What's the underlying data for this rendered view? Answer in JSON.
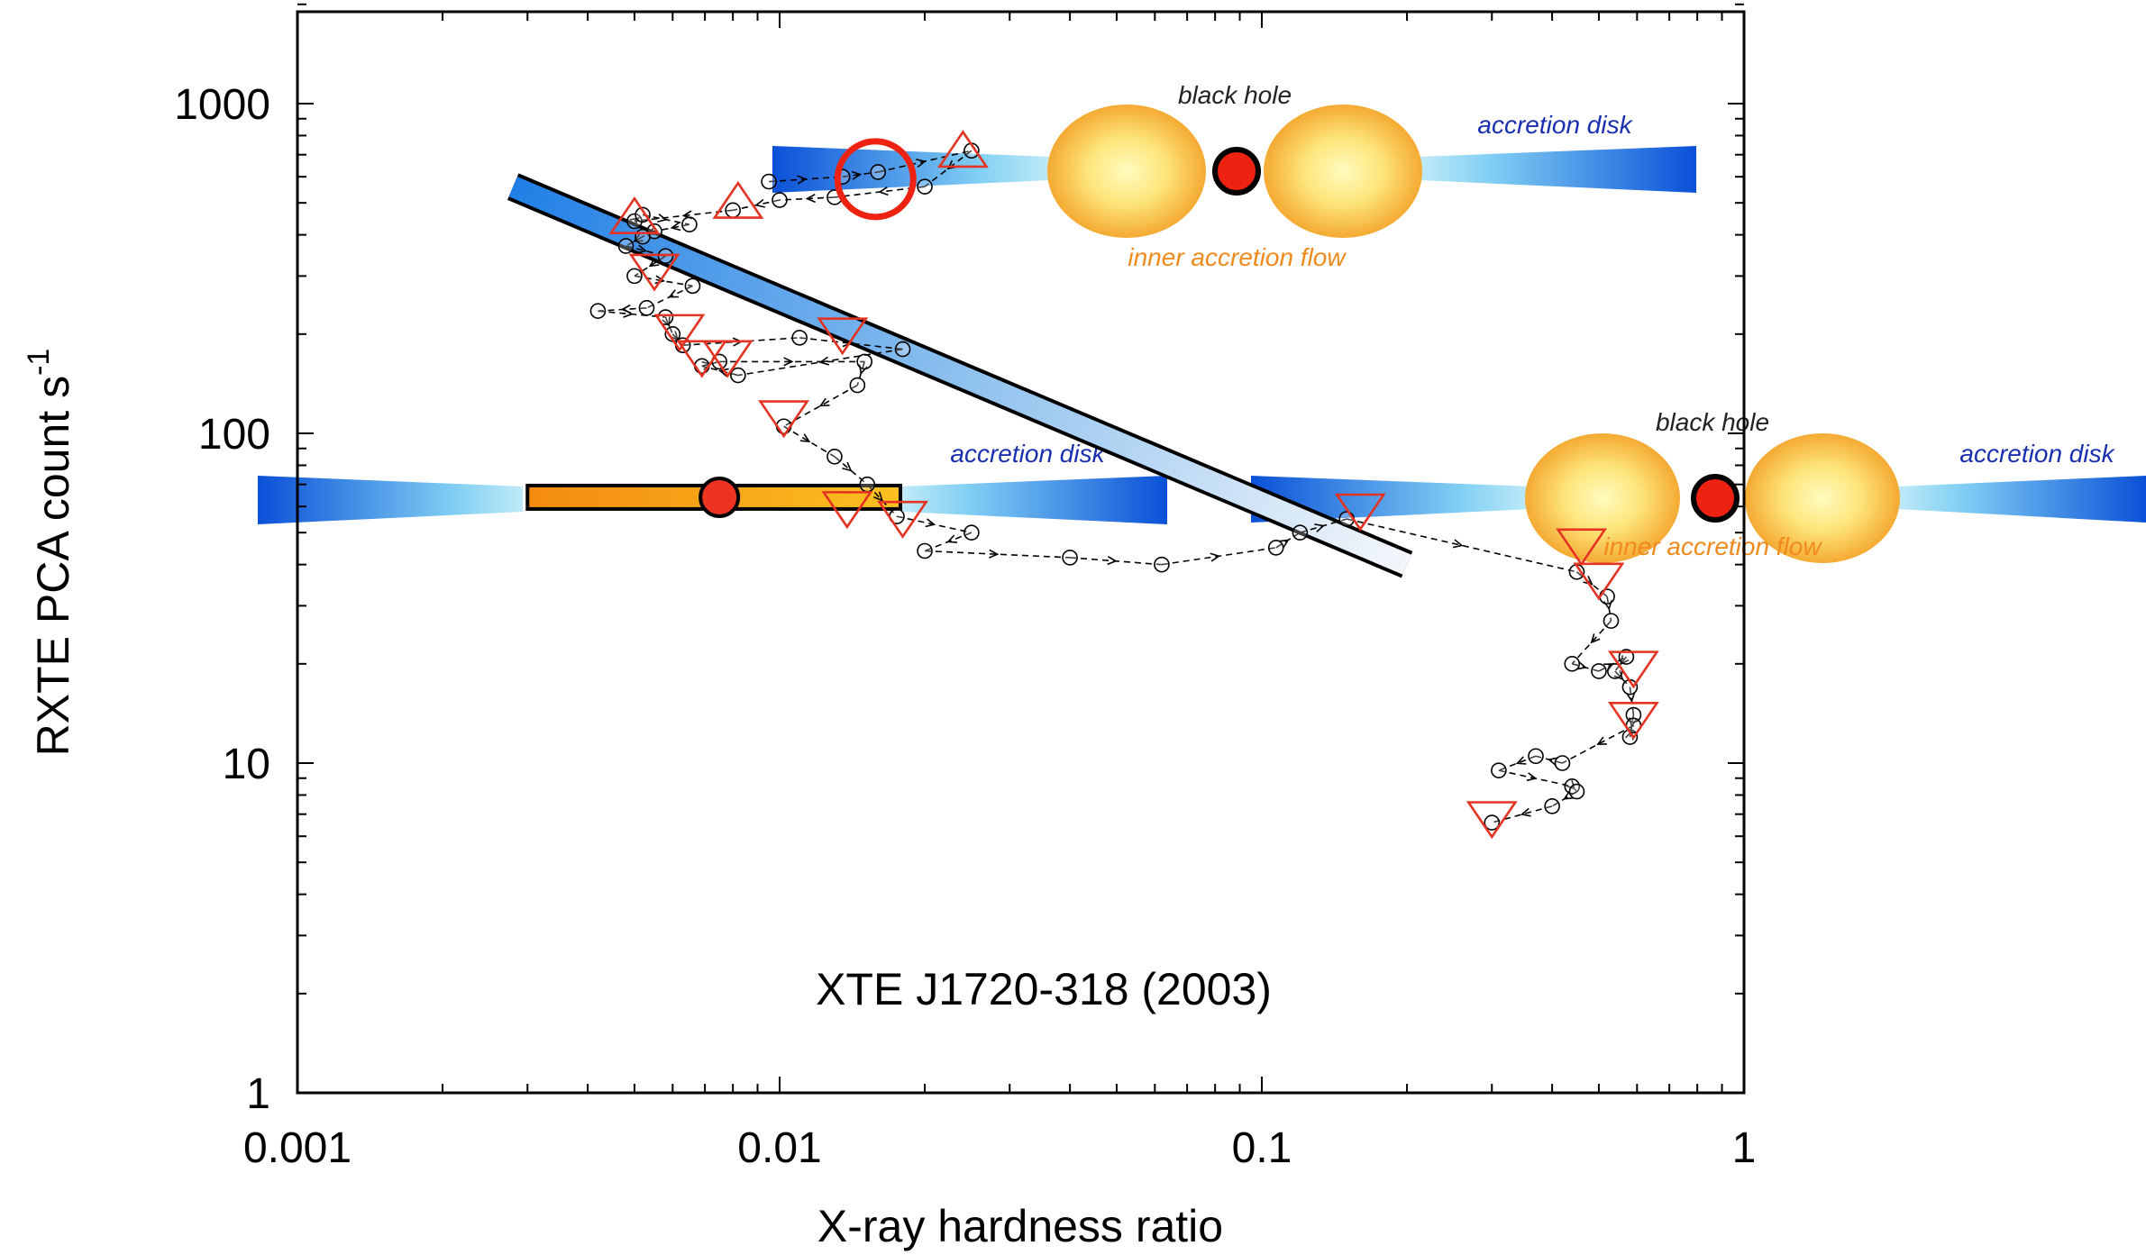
{
  "chart_data": {
    "type": "scatter",
    "title": "XTE J1720-318 (2003)",
    "xlabel": "X-ray hardness ratio",
    "ylabel": "RXTE PCA count s",
    "ylabel_superscript": "-1",
    "xscale": "log",
    "yscale": "log",
    "xlim": [
      0.001,
      1
    ],
    "ylim": [
      1,
      2000
    ],
    "x_ticks": [
      "0.001",
      "0.01",
      "0.1",
      "1"
    ],
    "y_ticks": [
      "1",
      "10",
      "100",
      "1000"
    ],
    "series": [
      {
        "marker": "open circle",
        "connected": "dashed arrows",
        "points": [
          [
            0.0095,
            580
          ],
          [
            0.0135,
            600
          ],
          [
            0.016,
            620
          ],
          [
            0.025,
            720
          ],
          [
            0.02,
            560
          ],
          [
            0.013,
            520
          ],
          [
            0.01,
            510
          ],
          [
            0.008,
            475
          ],
          [
            0.005,
            440
          ],
          [
            0.0052,
            460
          ],
          [
            0.0065,
            430
          ],
          [
            0.0055,
            410
          ],
          [
            0.0052,
            395
          ],
          [
            0.0048,
            370
          ],
          [
            0.0058,
            345
          ],
          [
            0.005,
            300
          ],
          [
            0.0066,
            280
          ],
          [
            0.0053,
            240
          ],
          [
            0.0042,
            235
          ],
          [
            0.0058,
            225
          ],
          [
            0.006,
            200
          ],
          [
            0.0063,
            185
          ],
          [
            0.011,
            195
          ],
          [
            0.018,
            180
          ],
          [
            0.0082,
            150
          ],
          [
            0.0069,
            160
          ],
          [
            0.0075,
            165
          ],
          [
            0.015,
            165
          ],
          [
            0.0145,
            140
          ],
          [
            0.0102,
            105
          ],
          [
            0.013,
            85
          ],
          [
            0.0152,
            70
          ],
          [
            0.0175,
            56
          ],
          [
            0.025,
            50
          ],
          [
            0.02,
            44
          ],
          [
            0.04,
            42
          ],
          [
            0.062,
            40
          ],
          [
            0.107,
            45
          ],
          [
            0.12,
            50
          ],
          [
            0.15,
            55
          ],
          [
            0.45,
            38
          ],
          [
            0.52,
            32
          ],
          [
            0.53,
            27
          ],
          [
            0.44,
            20
          ],
          [
            0.5,
            19
          ],
          [
            0.57,
            21
          ],
          [
            0.54,
            19
          ],
          [
            0.58,
            17
          ],
          [
            0.59,
            14
          ],
          [
            0.58,
            12
          ],
          [
            0.59,
            13
          ],
          [
            0.42,
            10
          ],
          [
            0.37,
            10.5
          ],
          [
            0.31,
            9.5
          ],
          [
            0.44,
            8.5
          ],
          [
            0.45,
            8.2
          ],
          [
            0.4,
            7.4
          ],
          [
            0.3,
            6.6
          ]
        ]
      },
      {
        "marker": "red triangle",
        "points": [
          {
            "x": 0.024,
            "y": 700,
            "dir": "up"
          },
          {
            "x": 0.0082,
            "y": 490,
            "dir": "up"
          },
          {
            "x": 0.005,
            "y": 440,
            "dir": "up"
          },
          {
            "x": 0.0055,
            "y": 320,
            "dir": "down"
          },
          {
            "x": 0.0062,
            "y": 210,
            "dir": "down"
          },
          {
            "x": 0.0069,
            "y": 175,
            "dir": "down"
          },
          {
            "x": 0.0078,
            "y": 175,
            "dir": "down"
          },
          {
            "x": 0.0135,
            "y": 205,
            "dir": "down"
          },
          {
            "x": 0.0102,
            "y": 115,
            "dir": "down"
          },
          {
            "x": 0.0138,
            "y": 61,
            "dir": "down"
          },
          {
            "x": 0.018,
            "y": 57,
            "dir": "down"
          },
          {
            "x": 0.16,
            "y": 60,
            "dir": "down"
          },
          {
            "x": 0.46,
            "y": 47,
            "dir": "down"
          },
          {
            "x": 0.5,
            "y": 37,
            "dir": "down"
          },
          {
            "x": 0.59,
            "y": 20,
            "dir": "down"
          },
          {
            "x": 0.59,
            "y": 14,
            "dir": "down"
          },
          {
            "x": 0.3,
            "y": 7.0,
            "dir": "down"
          }
        ]
      }
    ],
    "highlight": {
      "x": 0.0158,
      "y": 590,
      "label": ""
    },
    "transition_band": {
      "x": [
        0.0028,
        0.2
      ],
      "y": [
        560,
        40
      ],
      "from_color": "#1e7ee6",
      "to_color": "#f2f6fb"
    },
    "soft_state_marker": {
      "bar_x": [
        0.003,
        0.0178
      ],
      "y": 64,
      "point_x": 0.0075,
      "bar_color": "#f5a410",
      "point_color": "#ee3322"
    },
    "insets": [
      {
        "labels": {
          "hole": "black hole",
          "disk": "accretion disk",
          "flow": "inner accretion flow"
        }
      },
      {
        "labels": {
          "hole": "black hole",
          "disk": "accretion disk",
          "flow": "inner accretion flow"
        }
      },
      {
        "labels": {
          "disk": "accretion disk"
        }
      }
    ],
    "colors": {
      "triangle": "#e53322",
      "disk_dark": "#0a50d8",
      "disk_light": "#7ccaf2",
      "flow_core": "#fffbb0",
      "flow_edge": "#f4a526",
      "hole": "#ee2211"
    },
    "grid": false,
    "legend": "none"
  }
}
